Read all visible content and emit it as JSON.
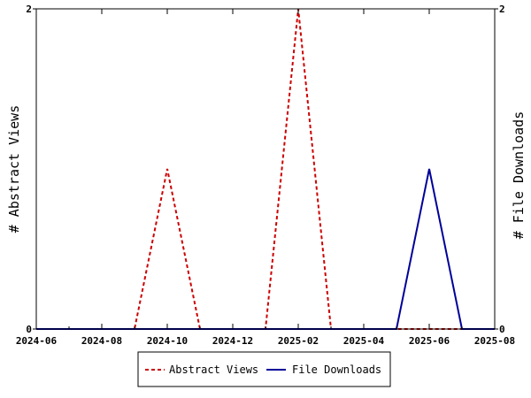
{
  "chart_data": {
    "type": "line",
    "x_ticks": [
      "2024-06",
      "2024-08",
      "2024-10",
      "2024-12",
      "2025-02",
      "2025-04",
      "2025-06",
      "2025-08"
    ],
    "x_range": [
      "2024-06",
      "2025-08"
    ],
    "y_left": {
      "label": "# Abstract Views",
      "range": [
        0,
        2
      ],
      "ticks": [
        "0",
        "2"
      ]
    },
    "y_right": {
      "label": "# File Downloads",
      "range": [
        0,
        2
      ],
      "ticks": [
        "0",
        "2"
      ]
    },
    "grid": false,
    "legend_position": "bottom-center",
    "x": [
      "2024-06",
      "2024-07",
      "2024-08",
      "2024-09",
      "2024-10",
      "2024-11",
      "2024-12",
      "2025-01",
      "2025-02",
      "2025-03",
      "2025-04",
      "2025-05",
      "2025-06",
      "2025-07",
      "2025-08"
    ],
    "series": [
      {
        "name": "Abstract Views",
        "axis": "left",
        "color": "#cc0000",
        "dash": true,
        "values": [
          0,
          0,
          0,
          0,
          1,
          0,
          0,
          0,
          2,
          0,
          0,
          0,
          0,
          0,
          0
        ]
      },
      {
        "name": "File Downloads",
        "axis": "right",
        "color": "#000099",
        "dash": false,
        "values": [
          0,
          0,
          0,
          0,
          0,
          0,
          0,
          0,
          0,
          0,
          0,
          0,
          1,
          0,
          0
        ]
      }
    ]
  }
}
